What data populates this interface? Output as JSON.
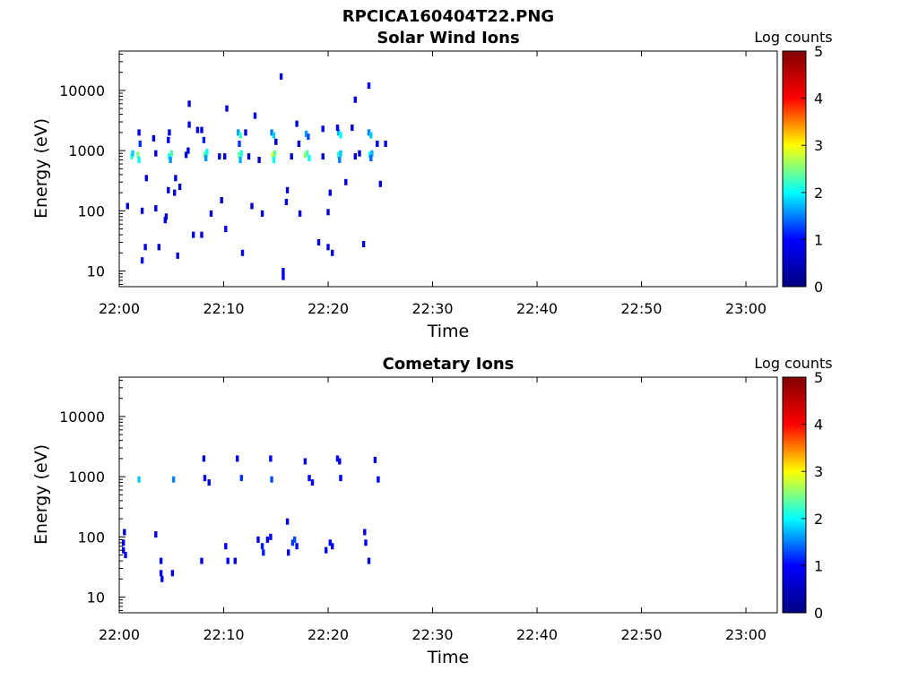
{
  "figure": {
    "title": "RPCICA160404T22.PNG"
  },
  "chart_data": [
    {
      "type": "heatmap",
      "title": "Solar Wind Ions",
      "xlabel": "Time",
      "ylabel": "Energy (eV)",
      "y_scale": "log",
      "xlim_minutes": [
        0,
        63
      ],
      "ylim": [
        5.5,
        45000
      ],
      "x_ticks": [
        {
          "label": "22:00",
          "value": 0
        },
        {
          "label": "22:10",
          "value": 10
        },
        {
          "label": "22:20",
          "value": 20
        },
        {
          "label": "22:30",
          "value": 30
        },
        {
          "label": "22:40",
          "value": 40
        },
        {
          "label": "22:50",
          "value": 50
        },
        {
          "label": "23:00",
          "value": 60
        }
      ],
      "y_ticks": [
        {
          "label": "10",
          "value": 10
        },
        {
          "label": "100",
          "value": 100
        },
        {
          "label": "1000",
          "value": 1000
        },
        {
          "label": "10000",
          "value": 10000
        }
      ],
      "colorbar": {
        "label": "Log counts",
        "range": [
          0,
          5
        ],
        "ticks": [
          "0",
          "1",
          "2",
          "3",
          "4",
          "5"
        ],
        "colormap": [
          "#000080",
          "#0000ff",
          "#00ffff",
          "#ffff00",
          "#ff0000",
          "#800000"
        ]
      },
      "grid": false,
      "points": [
        [
          1.2,
          800,
          2.2
        ],
        [
          1.3,
          900,
          1.8
        ],
        [
          1.8,
          850,
          2.5
        ],
        [
          1.9,
          700,
          2.0
        ],
        [
          2.0,
          1300,
          1.2
        ],
        [
          1.9,
          2000,
          1.0
        ],
        [
          4.8,
          800,
          2.0
        ],
        [
          5.0,
          900,
          2.3
        ],
        [
          4.9,
          700,
          1.6
        ],
        [
          4.7,
          1500,
          1.0
        ],
        [
          4.8,
          2000,
          0.8
        ],
        [
          8.2,
          850,
          2.4
        ],
        [
          8.4,
          950,
          2.0
        ],
        [
          8.3,
          750,
          1.6
        ],
        [
          8.1,
          1500,
          1.1
        ],
        [
          7.9,
          2200,
          0.8
        ],
        [
          11.5,
          850,
          2.4
        ],
        [
          11.7,
          900,
          2.1
        ],
        [
          11.6,
          700,
          1.7
        ],
        [
          11.4,
          2000,
          1.6
        ],
        [
          11.6,
          1800,
          2.2
        ],
        [
          11.5,
          1300,
          1.2
        ],
        [
          14.7,
          850,
          2.8
        ],
        [
          14.9,
          900,
          2.4
        ],
        [
          14.8,
          700,
          2.0
        ],
        [
          14.6,
          2000,
          1.5
        ],
        [
          14.8,
          1800,
          1.8
        ],
        [
          17.8,
          850,
          2.6
        ],
        [
          18.0,
          900,
          2.3
        ],
        [
          18.2,
          750,
          2.0
        ],
        [
          17.9,
          1900,
          1.6
        ],
        [
          18.1,
          1700,
          1.3
        ],
        [
          21.0,
          850,
          2.2
        ],
        [
          21.2,
          900,
          1.8
        ],
        [
          21.1,
          700,
          1.5
        ],
        [
          21.0,
          2000,
          1.7
        ],
        [
          21.2,
          1800,
          2.0
        ],
        [
          24.0,
          850,
          2.0
        ],
        [
          24.2,
          900,
          1.7
        ],
        [
          24.1,
          750,
          1.4
        ],
        [
          23.9,
          2000,
          1.5
        ],
        [
          24.1,
          1800,
          1.8
        ],
        [
          24.7,
          1300,
          1.0
        ],
        [
          0.8,
          120,
          0.6
        ],
        [
          2.2,
          15,
          1.0
        ],
        [
          2.5,
          25,
          0.8
        ],
        [
          3.8,
          25,
          0.7
        ],
        [
          4.4,
          70,
          0.8
        ],
        [
          4.5,
          80,
          0.6
        ],
        [
          5.6,
          18,
          0.7
        ],
        [
          7.1,
          40,
          0.8
        ],
        [
          7.9,
          40,
          0.8
        ],
        [
          10.2,
          50,
          0.9
        ],
        [
          11.8,
          20,
          0.8
        ],
        [
          15.7,
          8,
          1.0
        ],
        [
          15.7,
          10,
          1.0
        ],
        [
          16.0,
          140,
          0.9
        ],
        [
          19.1,
          30,
          0.8
        ],
        [
          20.0,
          25,
          0.7
        ],
        [
          20.4,
          20,
          0.8
        ],
        [
          23.4,
          28,
          0.8
        ],
        [
          22.6,
          7000,
          0.8
        ],
        [
          23.9,
          12000,
          0.9
        ],
        [
          15.5,
          17000,
          0.7
        ],
        [
          6.7,
          6000,
          0.7
        ],
        [
          10.3,
          5000,
          0.7
        ],
        [
          13.0,
          3800,
          0.7
        ],
        [
          17.0,
          2800,
          0.7
        ],
        [
          2.2,
          100,
          0.7
        ],
        [
          3.5,
          110,
          0.7
        ],
        [
          4.7,
          220,
          0.7
        ],
        [
          5.3,
          200,
          0.7
        ],
        [
          5.8,
          250,
          0.6
        ],
        [
          8.8,
          90,
          0.6
        ],
        [
          9.8,
          150,
          0.6
        ],
        [
          12.7,
          120,
          0.6
        ],
        [
          13.7,
          90,
          0.6
        ],
        [
          16.1,
          220,
          0.7
        ],
        [
          17.3,
          90,
          0.7
        ],
        [
          20.2,
          200,
          0.7
        ],
        [
          20.0,
          95,
          0.6
        ],
        [
          21.7,
          300,
          0.7
        ],
        [
          25.0,
          280,
          0.6
        ],
        [
          6.7,
          2700,
          0.8
        ],
        [
          7.5,
          2200,
          0.8
        ],
        [
          12.1,
          2000,
          0.7
        ],
        [
          15.0,
          1400,
          0.6
        ],
        [
          17.2,
          1300,
          0.6
        ],
        [
          19.5,
          2300,
          0.8
        ],
        [
          20.9,
          2400,
          0.8
        ],
        [
          22.3,
          2400,
          0.7
        ],
        [
          23.0,
          900,
          0.7
        ],
        [
          25.5,
          1300,
          0.8
        ],
        [
          2.6,
          350,
          0.7
        ],
        [
          3.5,
          900,
          0.6
        ],
        [
          5.4,
          350,
          0.7
        ],
        [
          6.4,
          850,
          0.6
        ],
        [
          9.6,
          800,
          0.6
        ],
        [
          10.1,
          800,
          0.6
        ],
        [
          12.4,
          800,
          0.6
        ],
        [
          13.4,
          700,
          0.6
        ],
        [
          16.5,
          800,
          0.6
        ],
        [
          19.5,
          800,
          0.6
        ],
        [
          22.6,
          800,
          0.6
        ],
        [
          3.3,
          1600,
          0.7
        ],
        [
          6.6,
          1000,
          0.7
        ]
      ]
    },
    {
      "type": "heatmap",
      "title": "Cometary Ions",
      "xlabel": "Time",
      "ylabel": "Energy (eV)",
      "y_scale": "log",
      "xlim_minutes": [
        0,
        63
      ],
      "ylim": [
        5.5,
        45000
      ],
      "x_ticks": [
        {
          "label": "22:00",
          "value": 0
        },
        {
          "label": "22:10",
          "value": 10
        },
        {
          "label": "22:20",
          "value": 20
        },
        {
          "label": "22:30",
          "value": 30
        },
        {
          "label": "22:40",
          "value": 40
        },
        {
          "label": "22:50",
          "value": 50
        },
        {
          "label": "23:00",
          "value": 60
        }
      ],
      "y_ticks": [
        {
          "label": "10",
          "value": 10
        },
        {
          "label": "100",
          "value": 100
        },
        {
          "label": "1000",
          "value": 1000
        },
        {
          "label": "10000",
          "value": 10000
        }
      ],
      "colorbar": {
        "label": "Log counts",
        "range": [
          0,
          5
        ],
        "ticks": [
          "0",
          "1",
          "2",
          "3",
          "4",
          "5"
        ],
        "colormap": [
          "#000080",
          "#0000ff",
          "#00ffff",
          "#ffff00",
          "#ff0000",
          "#800000"
        ]
      },
      "grid": false,
      "points": [
        [
          0.4,
          80,
          0.9
        ],
        [
          0.4,
          60,
          0.8
        ],
        [
          0.5,
          120,
          0.7
        ],
        [
          0.6,
          50,
          0.8
        ],
        [
          3.5,
          110,
          0.7
        ],
        [
          4.0,
          40,
          0.8
        ],
        [
          4.1,
          20,
          0.9
        ],
        [
          4.0,
          25,
          0.8
        ],
        [
          5.1,
          25,
          0.7
        ],
        [
          7.9,
          40,
          0.8
        ],
        [
          10.2,
          70,
          0.9
        ],
        [
          10.4,
          40,
          0.9
        ],
        [
          11.1,
          40,
          0.8
        ],
        [
          13.3,
          90,
          0.7
        ],
        [
          13.7,
          70,
          1.1
        ],
        [
          13.8,
          55,
          1.1
        ],
        [
          14.2,
          90,
          0.8
        ],
        [
          14.5,
          100,
          0.9
        ],
        [
          16.1,
          180,
          0.8
        ],
        [
          16.6,
          80,
          1.2
        ],
        [
          16.8,
          90,
          1.3
        ],
        [
          17.0,
          70,
          1.0
        ],
        [
          16.2,
          55,
          0.8
        ],
        [
          19.8,
          60,
          0.8
        ],
        [
          20.2,
          80,
          1.0
        ],
        [
          20.4,
          70,
          0.9
        ],
        [
          23.6,
          80,
          0.8
        ],
        [
          23.9,
          40,
          0.7
        ],
        [
          23.5,
          120,
          0.7
        ],
        [
          1.9,
          900,
          1.8
        ],
        [
          5.2,
          900,
          1.5
        ],
        [
          8.2,
          950,
          1.0
        ],
        [
          8.6,
          800,
          0.8
        ],
        [
          11.7,
          950,
          1.2
        ],
        [
          14.6,
          900,
          1.3
        ],
        [
          18.2,
          950,
          1.0
        ],
        [
          18.5,
          800,
          0.9
        ],
        [
          21.2,
          950,
          0.8
        ],
        [
          24.8,
          900,
          1.0
        ],
        [
          8.1,
          2000,
          0.7
        ],
        [
          11.3,
          2000,
          0.8
        ],
        [
          14.5,
          2000,
          0.9
        ],
        [
          17.8,
          1800,
          0.8
        ],
        [
          20.9,
          2000,
          1.0
        ],
        [
          21.1,
          1800,
          0.8
        ],
        [
          24.5,
          1900,
          0.7
        ]
      ]
    }
  ]
}
